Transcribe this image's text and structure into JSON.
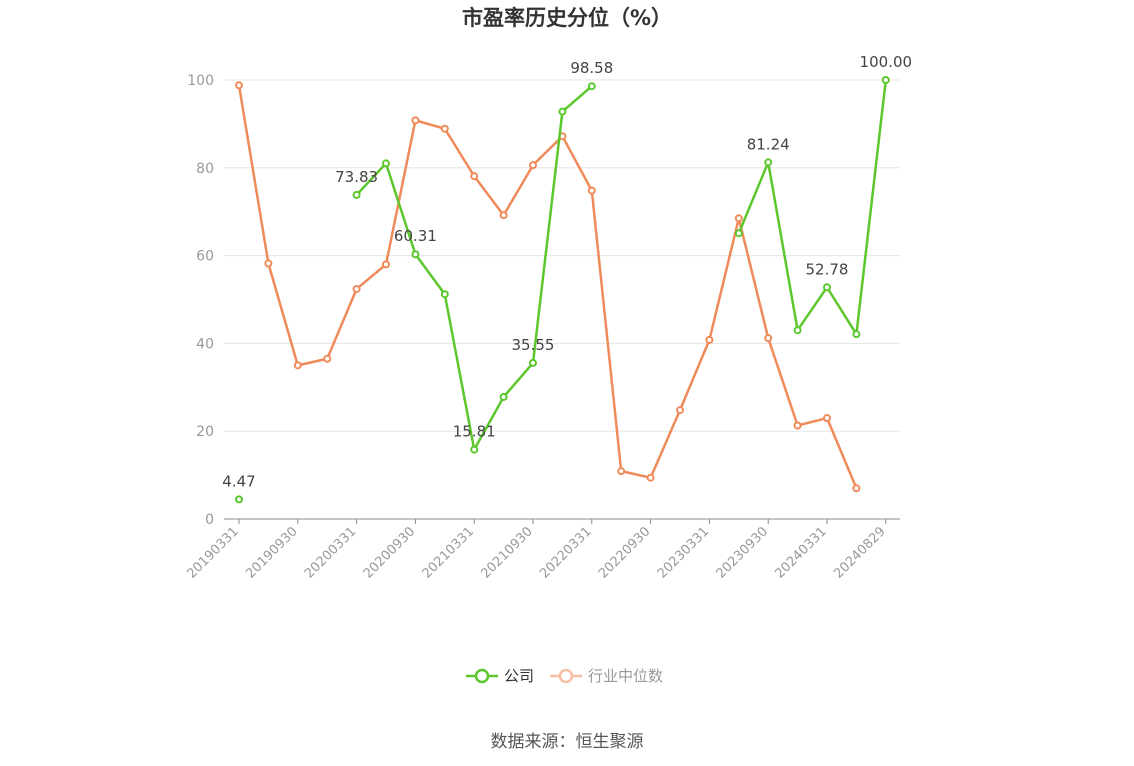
{
  "chart_data": {
    "type": "line",
    "title": "市盈率历史分位（%）",
    "ylim": [
      0,
      100
    ],
    "yticks": [
      0,
      20,
      40,
      60,
      80,
      100
    ],
    "x_tick_labels": [
      "20190331",
      "20190930",
      "20200331",
      "20200930",
      "20210331",
      "20210930",
      "20220331",
      "20220930",
      "20230331",
      "20230930",
      "20240331",
      "20240829"
    ],
    "grid": true,
    "legend_position": "bottom-center",
    "series": [
      {
        "name": "公司",
        "color": "#5cc72d",
        "values": [
          4.47,
          null,
          null,
          null,
          73.83,
          81.0,
          60.31,
          51.2,
          15.81,
          27.8,
          35.55,
          92.8,
          98.58,
          null,
          null,
          null,
          null,
          65.1,
          81.24,
          43.0,
          52.78,
          42.1,
          100.0
        ],
        "labels": [
          {
            "index": 0,
            "text": "4.47"
          },
          {
            "index": 4,
            "text": "73.83"
          },
          {
            "index": 6,
            "text": "60.31"
          },
          {
            "index": 8,
            "text": "15.81"
          },
          {
            "index": 10,
            "text": "35.55"
          },
          {
            "index": 12,
            "text": "98.58"
          },
          {
            "index": 18,
            "text": "81.24"
          },
          {
            "index": 20,
            "text": "52.78"
          },
          {
            "index": 22,
            "text": "100.00"
          }
        ]
      },
      {
        "name": "行业中位数",
        "color": "#ef8a5a",
        "values": [
          98.8,
          58.2,
          35.0,
          36.5,
          52.4,
          58.0,
          90.8,
          88.9,
          78.1,
          69.2,
          80.6,
          87.2,
          74.8,
          10.9,
          9.4,
          24.8,
          40.8,
          68.5,
          41.2,
          21.3,
          23.0,
          7.0,
          null
        ]
      }
    ]
  },
  "source_text": "数据来源：恒生聚源"
}
